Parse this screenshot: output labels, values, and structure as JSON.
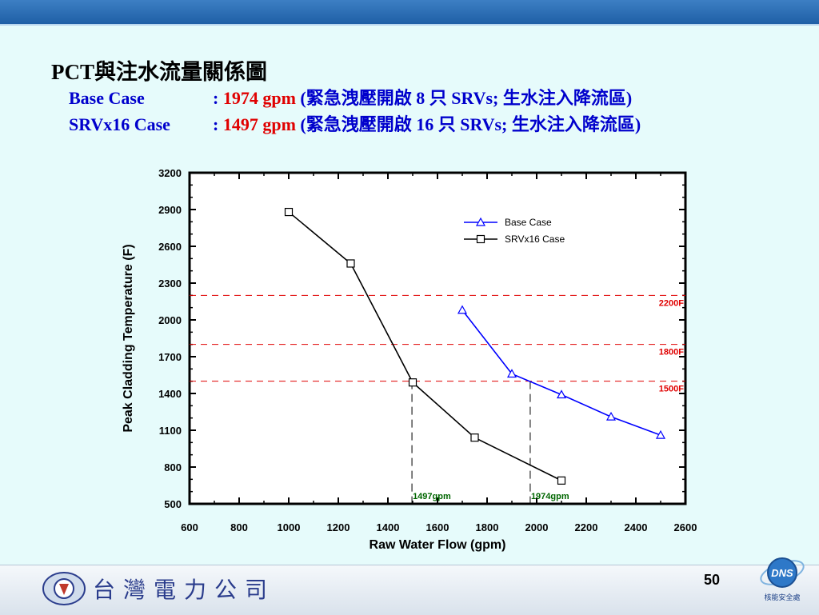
{
  "header": {
    "title": "PCT與注水流量關係圖",
    "rows": [
      {
        "label": "Base Case",
        "sep": ": ",
        "value": "1974 gpm",
        "note": "(緊急洩壓開啟 8 只 SRVs; 生水注入降流區)"
      },
      {
        "label": "SRVx16 Case",
        "sep": ": ",
        "value": "1497 gpm",
        "note": "(緊急洩壓開啟 16 只 SRVs; 生水注入降流區)"
      }
    ]
  },
  "chart_data": {
    "type": "line",
    "xlabel": "Raw Water Flow (gpm)",
    "ylabel": "Peak Cladding Temperature (F)",
    "xlim": [
      600,
      2600
    ],
    "ylim": [
      500,
      3200
    ],
    "xticks": [
      600,
      800,
      1000,
      1200,
      1400,
      1600,
      1800,
      2000,
      2200,
      2400,
      2600
    ],
    "yticks": [
      500,
      800,
      1100,
      1400,
      1700,
      2000,
      2300,
      2600,
      2900,
      3200
    ],
    "legend_position": "top-right",
    "series": [
      {
        "name": "Base Case",
        "marker": "triangle",
        "color": "#0000ff",
        "x": [
          1700,
          1900,
          2100,
          2300,
          2500
        ],
        "y": [
          2080,
          1560,
          1390,
          1210,
          1060
        ]
      },
      {
        "name": "SRVx16 Case",
        "marker": "square",
        "color": "#000000",
        "x": [
          1000,
          1250,
          1500,
          1750,
          2100
        ],
        "y": [
          2880,
          2460,
          1490,
          1040,
          690
        ]
      }
    ],
    "hlines": [
      {
        "y": 2200,
        "label": "2200F",
        "color": "#e00000"
      },
      {
        "y": 1800,
        "label": "1800F",
        "color": "#e00000"
      },
      {
        "y": 1500,
        "label": "1500F",
        "color": "#e00000"
      }
    ],
    "vlines": [
      {
        "x": 1497,
        "label": "1497gpm",
        "color": "#006600"
      },
      {
        "x": 1974,
        "label": "1974gpm",
        "color": "#006600"
      }
    ]
  },
  "footer": {
    "company": "台灣電力公司",
    "page": "50",
    "logo_text": "DNS",
    "logo_caption": "核能安全處"
  },
  "colors": {
    "background": "#e6fbfb",
    "topbar": "#2a6db5",
    "accent_red": "#e00000",
    "accent_blue": "#0000cc"
  }
}
